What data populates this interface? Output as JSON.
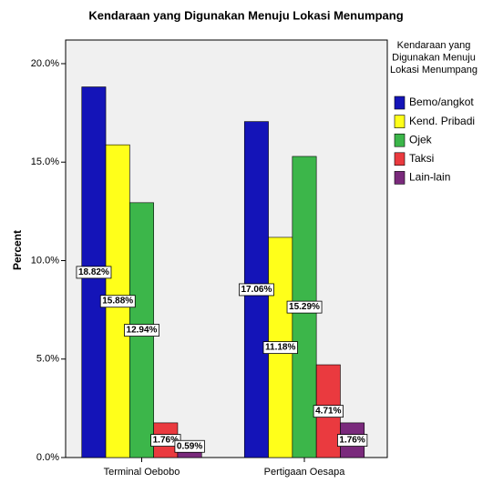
{
  "chart_data": {
    "type": "bar",
    "title": "Kendaraan yang Digunakan Menuju Lokasi Menumpang",
    "y_label": "Percent",
    "legend_title": [
      "Kendaraan yang",
      "Digunakan Menuju",
      "Lokasi Menumpang"
    ],
    "legend_position": "right",
    "categories": [
      "Terminal Oebobo",
      "Pertigaan Oesapa"
    ],
    "series": [
      {
        "name": "Bemo/angkot",
        "color": "#1414b8",
        "values": [
          18.82,
          17.06
        ],
        "value_labels": [
          "18.82%",
          "17.06%"
        ]
      },
      {
        "name": "Kend. Pribadi",
        "color": "#ffff1a",
        "values": [
          15.88,
          11.18
        ],
        "value_labels": [
          "15.88%",
          "11.18%"
        ]
      },
      {
        "name": "Ojek",
        "color": "#3cb64a",
        "values": [
          12.94,
          15.29
        ],
        "value_labels": [
          "12.94%",
          "15.29%"
        ]
      },
      {
        "name": "Taksi",
        "color": "#ea3a3f",
        "values": [
          1.76,
          4.71
        ],
        "value_labels": [
          "1.76%",
          "4.71%"
        ]
      },
      {
        "name": "Lain-lain",
        "color": "#7a2a7c",
        "values": [
          0.59,
          1.76
        ],
        "value_labels": [
          "0.59%",
          "1.76%"
        ]
      }
    ],
    "ylim": [
      0,
      21.2
    ],
    "yticks": [
      {
        "value": 0,
        "label": "0.0%"
      },
      {
        "value": 5,
        "label": "5.0%"
      },
      {
        "value": 10,
        "label": "10.0%"
      },
      {
        "value": 15,
        "label": "15.0%"
      },
      {
        "value": 20,
        "label": "20.0%"
      }
    ]
  }
}
